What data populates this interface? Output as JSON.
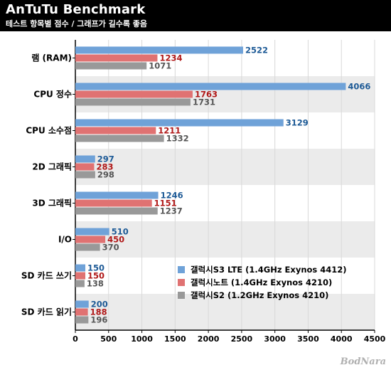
{
  "header": {
    "title": "AnTuTu Benchmark",
    "subtitle": "테스트 항목별 점수 / 그래프가 길수록 좋음"
  },
  "watermark": "BodNara",
  "colors": {
    "background_band": "#ebebeb",
    "series": [
      "#6fa2d8",
      "#e07272",
      "#999999"
    ],
    "labels": [
      "#1d5a96",
      "#b01818",
      "#555555"
    ]
  },
  "chart_data": {
    "type": "bar",
    "orientation": "horizontal",
    "title": "AnTuTu Benchmark",
    "subtitle": "테스트 항목별 점수 / 그래프가 길수록 좋음",
    "categories": [
      "램 (RAM)",
      "CPU 정수",
      "CPU 소수점",
      "2D 그래픽",
      "3D 그래픽",
      "I/O",
      "SD 카드 쓰기",
      "SD 카드 읽기"
    ],
    "series": [
      {
        "name": "갤럭시S3 LTE (1.4GHz Exynos 4412)",
        "values": [
          2522,
          4066,
          3129,
          297,
          1246,
          510,
          150,
          200
        ]
      },
      {
        "name": "갤럭시노트 (1.4GHz Exynos 4210)",
        "values": [
          1234,
          1763,
          1211,
          283,
          1151,
          450,
          150,
          188
        ]
      },
      {
        "name": "갤럭시S2 (1.2GHz Exynos 4210)",
        "values": [
          1071,
          1731,
          1332,
          298,
          1237,
          370,
          138,
          196
        ]
      }
    ],
    "xlim": [
      0,
      4500
    ],
    "xticks": [
      0,
      500,
      1000,
      1500,
      2000,
      2500,
      3000,
      3500,
      4000,
      4500
    ],
    "xlabel": "",
    "ylabel": "",
    "grid": true,
    "legend": "bottom-right"
  }
}
